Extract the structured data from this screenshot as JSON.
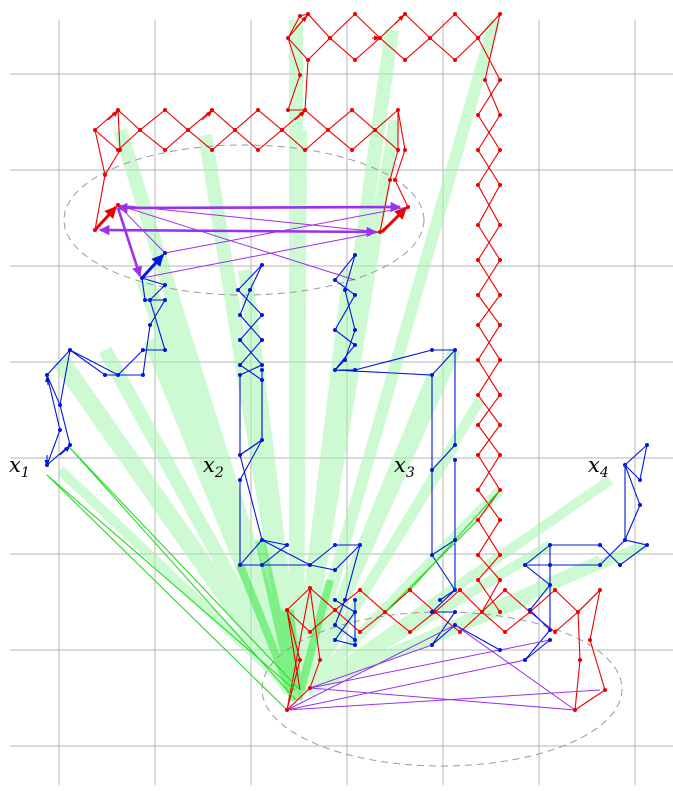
{
  "labels": {
    "x1": {
      "base": "x",
      "sub": "1"
    },
    "x2": {
      "base": "x",
      "sub": "2"
    },
    "x3": {
      "base": "x",
      "sub": "3"
    },
    "x4": {
      "base": "x",
      "sub": "4"
    }
  },
  "colors": {
    "grid": "#b5b5b5",
    "red_chain": "#ee0000",
    "blue_chain": "#0018d8",
    "green_link": "#22dd22",
    "green_fan": "#a6f7b0",
    "purple": "#9b30ee",
    "ellipse": "#9a9a9a"
  }
}
